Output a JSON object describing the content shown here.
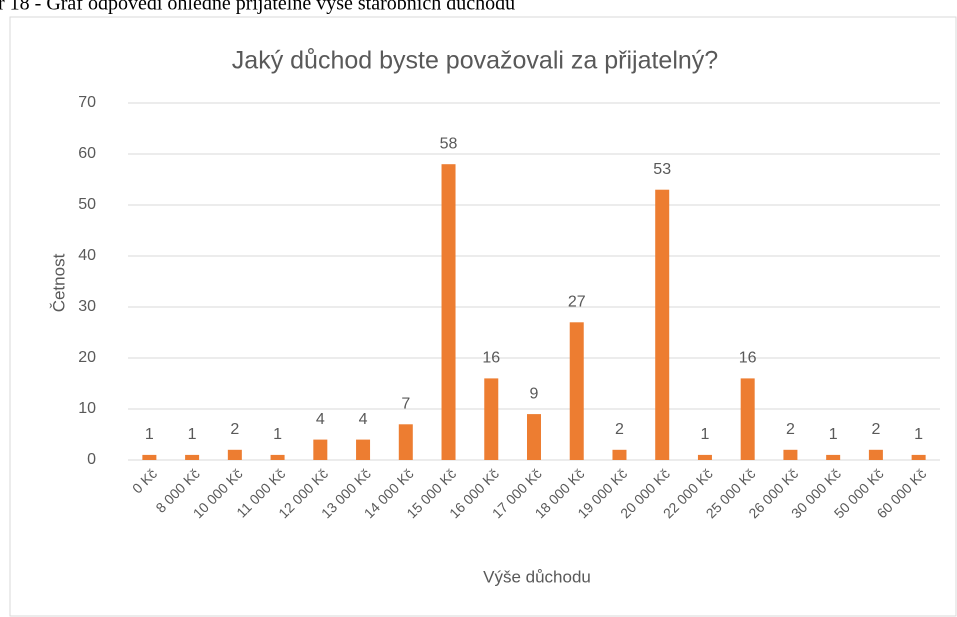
{
  "caption": "r 18 - Graf odpovědí ohledně přijatelné výše starobních důchodu",
  "chart_data": {
    "type": "bar",
    "title": "Jaký důchod byste považovali za přijatelný?",
    "x_label": "Výše důchodu",
    "y_label": "Četnost",
    "categories": [
      "0 Kč",
      "8 000 Kč",
      "10 000 Kč",
      "11 000 Kč",
      "12 000 Kč",
      "13 000 Kč",
      "14 000 Kč",
      "15 000 Kč",
      "16 000 Kč",
      "17 000 Kč",
      "18 000 Kč",
      "19 000 Kč",
      "20 000 Kč",
      "22 000 Kč",
      "25 000 Kč",
      "26 000 Kč",
      "30 000 Kč",
      "50 000 Kč",
      "60 000 Kč"
    ],
    "values": [
      1,
      1,
      2,
      1,
      4,
      4,
      7,
      58,
      16,
      9,
      27,
      2,
      53,
      1,
      16,
      2,
      1,
      2,
      1
    ],
    "color": "#ed7d31",
    "ylim": [
      0,
      70
    ],
    "yticks": [
      0,
      10,
      20,
      30,
      40,
      50,
      60,
      70
    ],
    "grid": true
  }
}
